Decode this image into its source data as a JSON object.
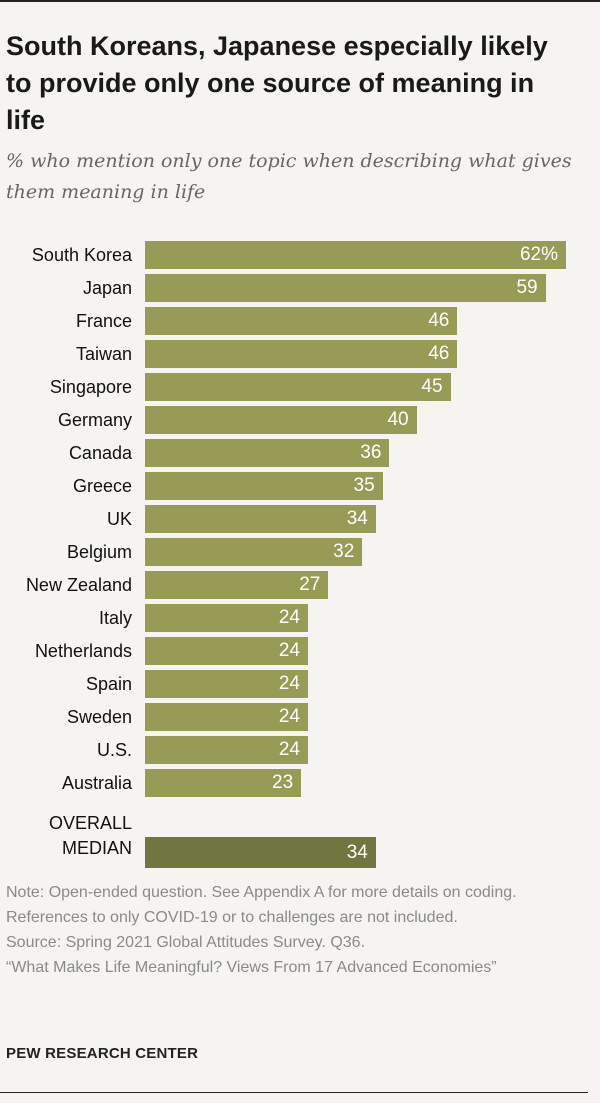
{
  "title": "South Koreans, Japanese especially likely to provide only one source of meaning in life",
  "subtitle": "% who mention only one topic when describing what gives them meaning in life",
  "chart_data": {
    "type": "bar",
    "orientation": "horizontal",
    "categories": [
      "South Korea",
      "Japan",
      "France",
      "Taiwan",
      "Singapore",
      "Germany",
      "Canada",
      "Greece",
      "UK",
      "Belgium",
      "New Zealand",
      "Italy",
      "Netherlands",
      "Spain",
      "Sweden",
      "U.S.",
      "Australia"
    ],
    "values": [
      62,
      59,
      46,
      46,
      45,
      40,
      36,
      35,
      34,
      32,
      27,
      24,
      24,
      24,
      24,
      24,
      23
    ],
    "value_labels": [
      "62%",
      "59",
      "46",
      "46",
      "45",
      "40",
      "36",
      "35",
      "34",
      "32",
      "27",
      "24",
      "24",
      "24",
      "24",
      "24",
      "23"
    ],
    "median": {
      "label_line1": "OVERALL",
      "label_line2": "MEDIAN",
      "value": 34,
      "value_label": "34"
    },
    "xlim": [
      0,
      62
    ],
    "colors": {
      "bar": "#989b55",
      "median_bar": "#717540"
    }
  },
  "notes": {
    "note": "Note: Open-ended question. See Appendix A for more details on coding. References to only COVID-19 or to challenges are not included.",
    "source": "Source: Spring 2021 Global Attitudes Survey. Q36.",
    "report": "“What Makes Life Meaningful? Views From 17 Advanced Economies”"
  },
  "org": "PEW RESEARCH CENTER"
}
